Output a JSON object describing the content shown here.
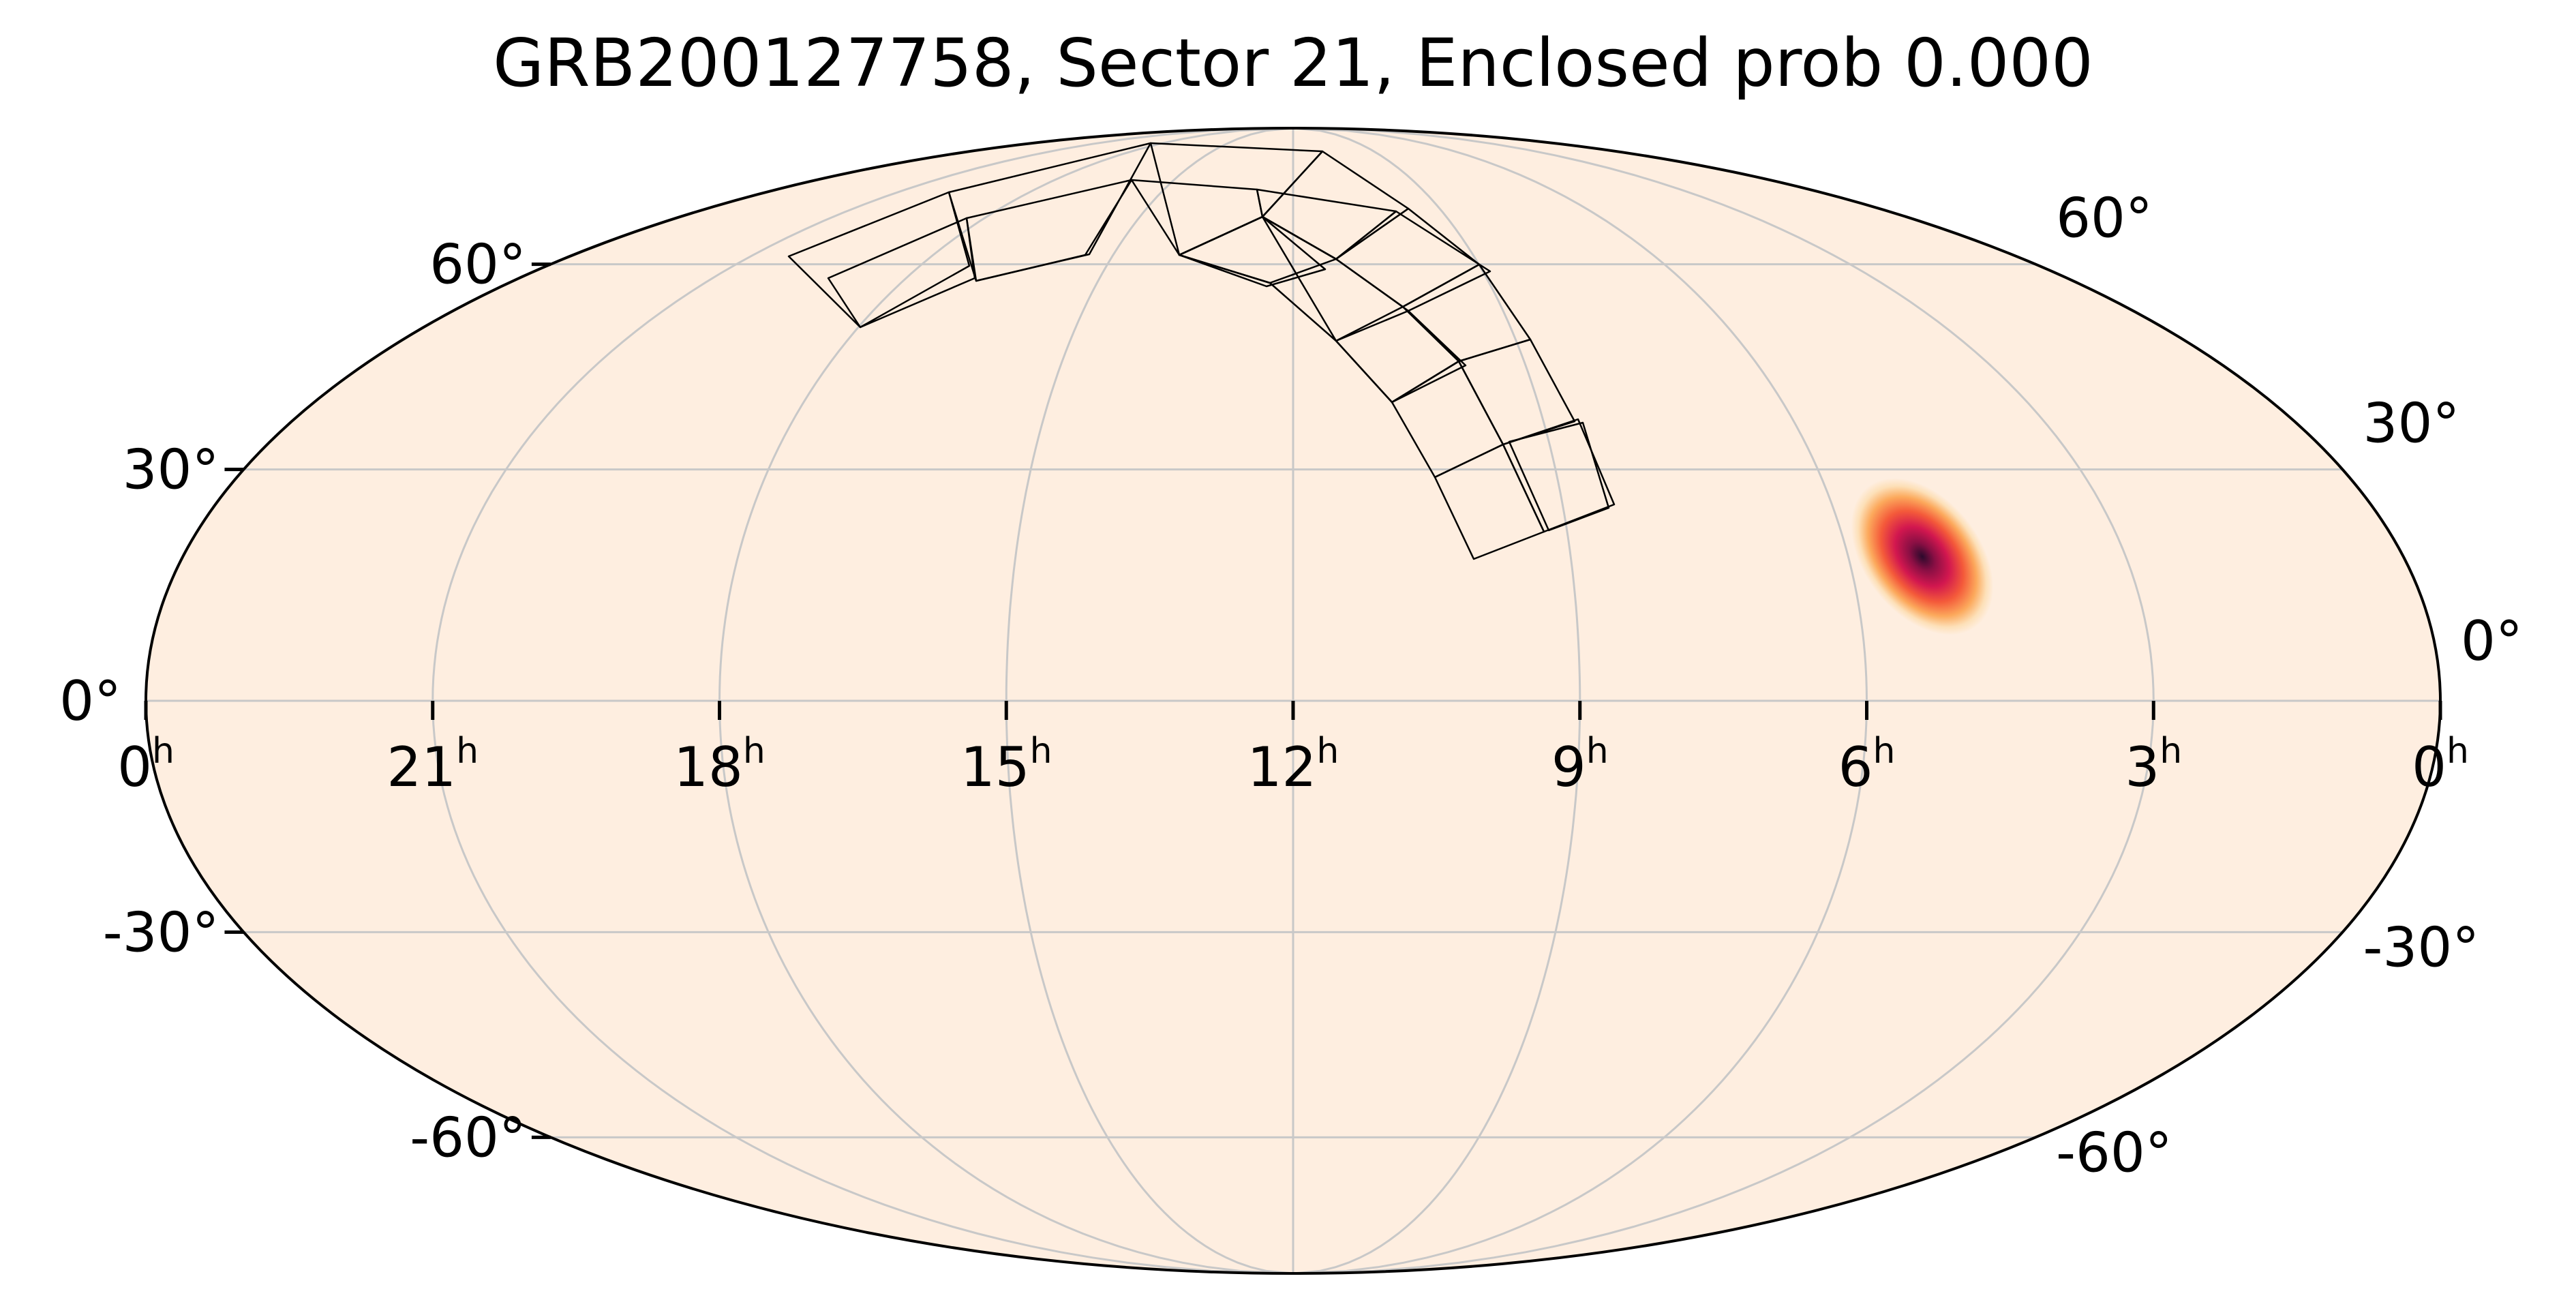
{
  "title": "GRB200127758, Sector 21, Enclosed prob 0.000",
  "projection": "mollweide",
  "ra_labels": [
    {
      "hours": 24,
      "text": "0",
      "unit": "h"
    },
    {
      "hours": 21,
      "text": "21",
      "unit": "h"
    },
    {
      "hours": 18,
      "text": "18",
      "unit": "h"
    },
    {
      "hours": 15,
      "text": "15",
      "unit": "h"
    },
    {
      "hours": 12,
      "text": "12",
      "unit": "h"
    },
    {
      "hours": 9,
      "text": "9",
      "unit": "h"
    },
    {
      "hours": 6,
      "text": "6",
      "unit": "h"
    },
    {
      "hours": 3,
      "text": "3",
      "unit": "h"
    },
    {
      "hours": 0,
      "text": "0",
      "unit": "h"
    }
  ],
  "dec_labels_left": [
    {
      "dec": 60,
      "text": "60°"
    },
    {
      "dec": 30,
      "text": "30°"
    },
    {
      "dec": 0,
      "text": "0°"
    },
    {
      "dec": -30,
      "text": "-30°"
    },
    {
      "dec": -60,
      "text": "-60°"
    }
  ],
  "dec_labels_right": [
    {
      "dec": 60,
      "text": "60°"
    },
    {
      "dec": 30,
      "text": "30°"
    },
    {
      "dec": 0,
      "text": "0°"
    },
    {
      "dec": -30,
      "text": "-30°"
    },
    {
      "dec": -60,
      "text": "-60°"
    }
  ],
  "grid": {
    "ra_lines_hours": [
      21,
      18,
      15,
      12,
      9,
      6,
      3
    ],
    "dec_lines_deg": [
      -60,
      -30,
      0,
      30,
      60
    ]
  },
  "colors": {
    "background": "#feeee0",
    "grid": "#c8c8c8",
    "outline": "#000000",
    "footprint": "#000000",
    "prob_colors": [
      "#feeee0",
      "#fde0b8",
      "#fca95c",
      "#f45a3a",
      "#d2174f",
      "#8a0f44",
      "#2c0a2c"
    ]
  },
  "localization": {
    "ra_hours": 5.2,
    "dec_deg": 18.5
  },
  "chart_data": {
    "type": "heatmap",
    "title": "GRB200127758, Sector 21, Enclosed prob 0.000",
    "hotspot": {
      "ra_hours": 5.2,
      "dec_deg": 18.5
    },
    "enclosed_probability": 0.0
  }
}
